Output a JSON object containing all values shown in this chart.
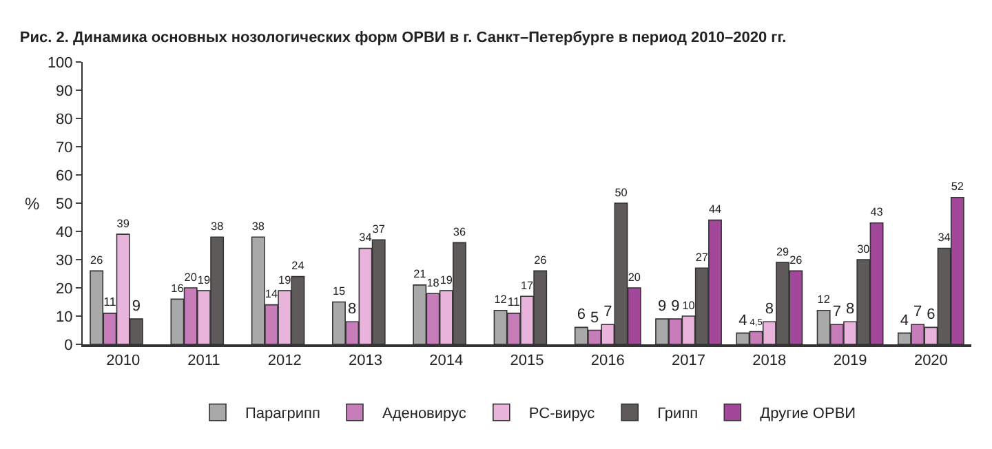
{
  "chart_data": {
    "type": "bar",
    "title": "Рис. 2. Динамика основных нозологических форм ОРВИ в г. Санкт–Петербурге в период 2010–2020 гг.",
    "ylabel": "%",
    "categories": [
      "2010",
      "2011",
      "2012",
      "2013",
      "2014",
      "2015",
      "2016",
      "2017",
      "2018",
      "2019",
      "2020"
    ],
    "series": [
      {
        "name": "Парагрипп",
        "color": "#a9a9a9",
        "values": [
          26,
          16,
          38,
          15,
          21,
          12,
          6,
          9,
          4,
          12,
          4
        ],
        "value_labels": [
          "26",
          "16",
          "38",
          "15",
          "21",
          "12",
          "6",
          "9",
          "4",
          "12",
          "4"
        ]
      },
      {
        "name": "Аденовирус",
        "color": "#c77dba",
        "values": [
          11,
          20,
          14,
          8,
          18,
          11,
          5,
          9,
          4.5,
          7,
          7
        ],
        "value_labels": [
          "11",
          "20",
          "14",
          "8",
          "18",
          "11",
          "5",
          "9",
          "4,5",
          "7",
          "7"
        ]
      },
      {
        "name": "РС-вирус",
        "color": "#e8b4dc",
        "values": [
          39,
          19,
          19,
          34,
          19,
          17,
          7,
          10,
          8,
          8,
          6
        ],
        "value_labels": [
          "39",
          "19",
          "19",
          "34",
          "19",
          "17",
          "7",
          "10",
          "8",
          "8",
          "6"
        ]
      },
      {
        "name": "Грипп",
        "color": "#5e5a5a",
        "values": [
          9,
          38,
          24,
          37,
          36,
          26,
          50,
          27,
          29,
          30,
          34
        ],
        "value_labels": [
          "9",
          "38",
          "24",
          "37",
          "36",
          "26",
          "50",
          "27",
          "29",
          "30",
          "34"
        ]
      },
      {
        "name": "Другие ОРВИ",
        "color": "#a3479b",
        "values": [
          null,
          null,
          null,
          null,
          null,
          null,
          20,
          44,
          26,
          43,
          52
        ],
        "value_labels": [
          null,
          null,
          null,
          null,
          null,
          null,
          "20",
          "44",
          "26",
          "43",
          "52"
        ]
      }
    ],
    "ylim": [
      0,
      100
    ],
    "yticks": [
      0,
      10,
      20,
      30,
      40,
      50,
      60,
      70,
      80,
      90,
      100
    ],
    "grid": false,
    "legend": "bottom"
  }
}
